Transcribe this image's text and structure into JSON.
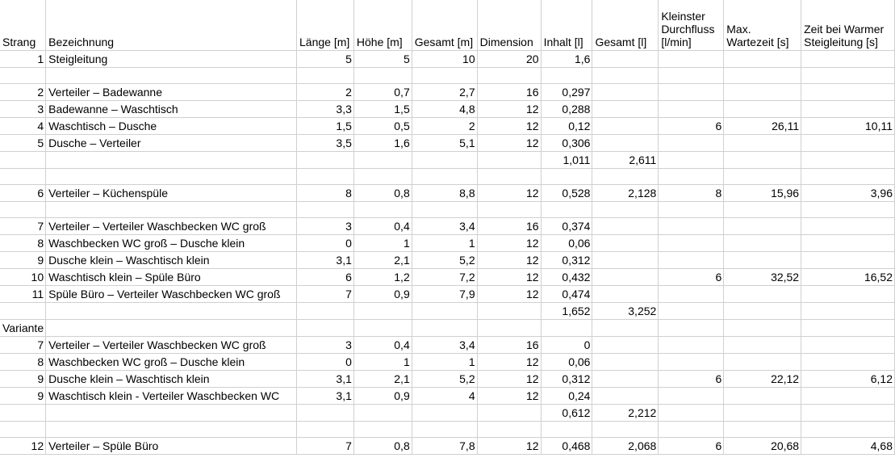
{
  "columns": [
    "Strang",
    "Bezeichnung",
    "Länge [m]",
    "Höhe [m]",
    "Gesamt [m]",
    "Dimension",
    "Inhalt [l]",
    "Gesamt [l]",
    "Kleinster Durchfluss [l/min]",
    "Max. Wartezeit [s]",
    "Zeit bei Warmer Steigleitung [s]"
  ],
  "rows": [
    [
      "1",
      "Steigleitung",
      "5",
      "5",
      "10",
      "20",
      "1,6",
      "",
      "",
      "",
      ""
    ],
    [
      "",
      "",
      "",
      "",
      "",
      "",
      "",
      "",
      "",
      "",
      ""
    ],
    [
      "2",
      "Verteiler – Badewanne",
      "2",
      "0,7",
      "2,7",
      "16",
      "0,297",
      "",
      "",
      "",
      ""
    ],
    [
      "3",
      "Badewanne – Waschtisch",
      "3,3",
      "1,5",
      "4,8",
      "12",
      "0,288",
      "",
      "",
      "",
      ""
    ],
    [
      "4",
      "Waschtisch – Dusche",
      "1,5",
      "0,5",
      "2",
      "12",
      "0,12",
      "",
      "6",
      "26,11",
      "10,11"
    ],
    [
      "5",
      "Dusche – Verteiler",
      "3,5",
      "1,6",
      "5,1",
      "12",
      "0,306",
      "",
      "",
      "",
      ""
    ],
    [
      "",
      "",
      "",
      "",
      "",
      "",
      "1,011",
      "2,611",
      "",
      "",
      ""
    ],
    [
      "",
      "",
      "",
      "",
      "",
      "",
      "",
      "",
      "",
      "",
      ""
    ],
    [
      "6",
      "Verteiler – Küchenspüle",
      "8",
      "0,8",
      "8,8",
      "12",
      "0,528",
      "2,128",
      "8",
      "15,96",
      "3,96"
    ],
    [
      "",
      "",
      "",
      "",
      "",
      "",
      "",
      "",
      "",
      "",
      ""
    ],
    [
      "7",
      "Verteiler – Verteiler Waschbecken WC groß",
      "3",
      "0,4",
      "3,4",
      "16",
      "0,374",
      "",
      "",
      "",
      ""
    ],
    [
      "8",
      "Waschbecken WC groß – Dusche klein",
      "0",
      "1",
      "1",
      "12",
      "0,06",
      "",
      "",
      "",
      ""
    ],
    [
      "9",
      "Dusche klein – Waschtisch klein",
      "3,1",
      "2,1",
      "5,2",
      "12",
      "0,312",
      "",
      "",
      "",
      ""
    ],
    [
      "10",
      "Waschtisch klein – Spüle Büro",
      "6",
      "1,2",
      "7,2",
      "12",
      "0,432",
      "",
      "6",
      "32,52",
      "16,52"
    ],
    [
      "11",
      "Spüle Büro – Verteiler Waschbecken WC groß",
      "7",
      "0,9",
      "7,9",
      "12",
      "0,474",
      "",
      "",
      "",
      ""
    ],
    [
      "",
      "",
      "",
      "",
      "",
      "",
      "1,652",
      "3,252",
      "",
      "",
      ""
    ],
    [
      "Variante",
      "",
      "",
      "",
      "",
      "",
      "",
      "",
      "",
      "",
      ""
    ],
    [
      "7",
      "Verteiler – Verteiler Waschbecken WC groß",
      "3",
      "0,4",
      "3,4",
      "16",
      "0",
      "",
      "",
      "",
      ""
    ],
    [
      "8",
      "Waschbecken WC groß – Dusche klein",
      "0",
      "1",
      "1",
      "12",
      "0,06",
      "",
      "",
      "",
      ""
    ],
    [
      "9",
      "Dusche klein – Waschtisch klein",
      "3,1",
      "2,1",
      "5,2",
      "12",
      "0,312",
      "",
      "6",
      "22,12",
      "6,12"
    ],
    [
      "9",
      "Waschtisch klein -  Verteiler Waschbecken WC",
      "3,1",
      "0,9",
      "4",
      "12",
      "0,24",
      "",
      "",
      "",
      ""
    ],
    [
      "",
      "",
      "",
      "",
      "",
      "",
      "0,612",
      "2,212",
      "",
      "",
      ""
    ],
    [
      "",
      "",
      "",
      "",
      "",
      "",
      "",
      "",
      "",
      "",
      ""
    ],
    [
      "12",
      "Verteiler – Spüle Büro",
      "7",
      "0,8",
      "7,8",
      "12",
      "0,468",
      "2,068",
      "6",
      "20,68",
      "4,68"
    ]
  ]
}
